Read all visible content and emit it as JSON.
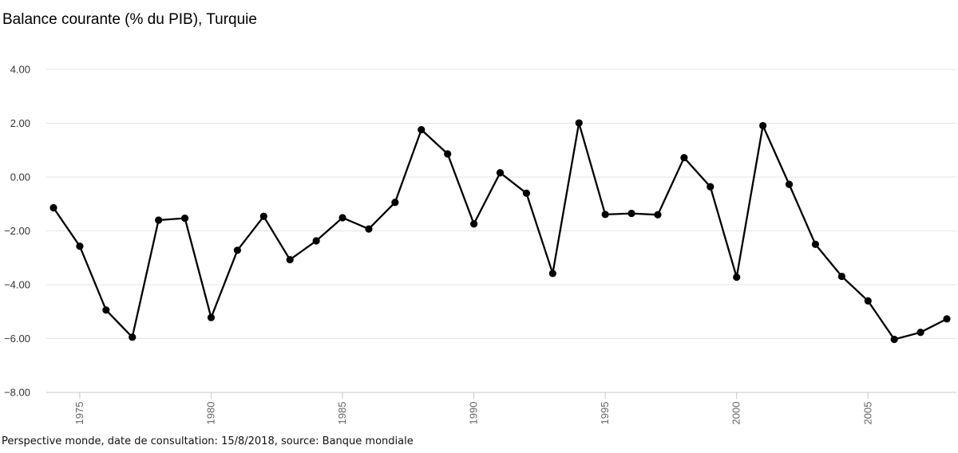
{
  "title": "Balance courante (% du PIB), Turquie",
  "footer": "Perspective monde, date de consultation: 15/8/2018, source: Banque mondiale",
  "chart_data": {
    "type": "line",
    "title": "Balance courante (% du PIB), Turquie",
    "xlabel": "",
    "ylabel": "",
    "ylim": [
      -8,
      4
    ],
    "xlim": [
      1974,
      2008
    ],
    "yticks": [
      "4.00",
      "2.00",
      "0.00",
      "−2.00",
      "−4.00",
      "−6.00",
      "−8.00"
    ],
    "ytick_values": [
      4,
      2,
      0,
      -2,
      -4,
      -6,
      -8
    ],
    "xticks": [
      "1975",
      "1980",
      "1985",
      "1990",
      "1995",
      "2000",
      "2005"
    ],
    "xtick_values": [
      1975,
      1980,
      1985,
      1990,
      1995,
      2000,
      2005
    ],
    "grid": true,
    "series": [
      {
        "color": "#000000",
        "x": [
          1974,
          1975,
          1976,
          1977,
          1978,
          1979,
          1980,
          1981,
          1982,
          1983,
          1984,
          1985,
          1986,
          1987,
          1988,
          1989,
          1990,
          1991,
          1992,
          1993,
          1994,
          1995,
          1996,
          1997,
          1998,
          1999,
          2000,
          2001,
          2002,
          2003,
          2004,
          2005,
          2006,
          2007,
          2008
        ],
        "values": [
          -1.14,
          -2.57,
          -4.94,
          -5.95,
          -1.6,
          -1.53,
          -5.22,
          -2.72,
          -1.46,
          -3.07,
          -2.37,
          -1.51,
          -1.93,
          -0.94,
          1.76,
          0.86,
          -1.74,
          0.16,
          -0.6,
          -3.58,
          2.01,
          -1.39,
          -1.35,
          -1.4,
          0.72,
          -0.36,
          -3.72,
          1.91,
          -0.27,
          -2.5,
          -3.69,
          -4.6,
          -6.03,
          -5.77,
          -5.27
        ]
      }
    ]
  }
}
